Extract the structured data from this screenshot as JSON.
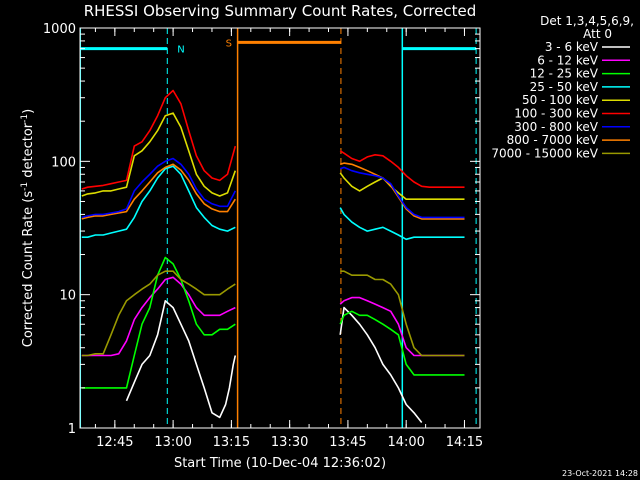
{
  "chart_data": {
    "type": "line",
    "title": "RHESSI Observing Summary Count Rates, Corrected",
    "xlabel": "Start Time (10-Dec-04 12:36:02)",
    "ylabel_main": "Corrected Count Rate (s",
    "ylabel_sup1": "-1",
    "ylabel_mid": " detector",
    "ylabel_sup2": "-1",
    "ylabel_end": ")",
    "yscale": "log",
    "ylim": [
      1,
      1000
    ],
    "xlim_minutes": [
      756.03,
      859.0
    ],
    "x_ticks": [
      {
        "label": "12:45",
        "minutes": 765
      },
      {
        "label": "13:00",
        "minutes": 780
      },
      {
        "label": "13:15",
        "minutes": 795
      },
      {
        "label": "13:30",
        "minutes": 810
      },
      {
        "label": "13:45",
        "minutes": 825
      },
      {
        "label": "14:00",
        "minutes": 840
      },
      {
        "label": "14:15",
        "minutes": 855
      }
    ],
    "y_ticks": [
      {
        "label": "1",
        "value": 1
      },
      {
        "label": "10",
        "value": 10
      },
      {
        "label": "100",
        "value": 100
      },
      {
        "label": "1000",
        "value": 1000
      }
    ],
    "legend_title": [
      "Det 1,3,4,5,6,9,",
      "Att 0"
    ],
    "legend_position": "right",
    "date_stamp": "23-Oct-2021 14:28",
    "series": [
      {
        "name": "3 - 6 keV",
        "color": "#ffffff",
        "x": [
          756.5,
          760,
          764,
          766,
          768,
          770,
          772,
          774,
          776,
          778,
          780,
          782,
          784,
          786,
          788,
          790,
          792,
          793.5,
          794.5,
          795.5,
          796,
          823,
          824,
          826,
          828,
          830,
          832,
          834,
          836,
          838,
          840,
          842,
          844,
          846,
          848,
          850,
          852,
          854,
          855
        ],
        "y": [
          null,
          null,
          null,
          null,
          1.6,
          2.2,
          3,
          3.5,
          5,
          9,
          8,
          6,
          4.5,
          3,
          2,
          1.3,
          1.2,
          1.5,
          2,
          3,
          3.5,
          5,
          8,
          7,
          6,
          5,
          4,
          3,
          2.5,
          2,
          1.5,
          1.3,
          1.1,
          null,
          null,
          null,
          null,
          null,
          null
        ]
      },
      {
        "name": "6 - 12 keV",
        "color": "#ff00ff",
        "x": [
          756.5,
          758,
          760,
          762,
          764,
          766,
          768,
          770,
          772,
          774,
          776,
          778,
          780,
          782,
          784,
          786,
          788,
          790,
          792,
          794,
          796,
          823,
          824,
          826,
          828,
          830,
          832,
          834,
          836,
          838,
          840,
          842,
          844,
          846,
          848,
          850,
          852,
          854,
          855
        ],
        "y": [
          3.5,
          3.5,
          3.5,
          3.5,
          3.5,
          3.6,
          4.5,
          6.5,
          8,
          9.5,
          11,
          13,
          13.5,
          12,
          10,
          8,
          7,
          7,
          7,
          7.5,
          8,
          8.5,
          9,
          9.5,
          9.5,
          9,
          8.5,
          8,
          7.5,
          6,
          4,
          3.5,
          3.5,
          3.5,
          3.5,
          3.5,
          3.5,
          3.5,
          3.5
        ]
      },
      {
        "name": "12 - 25 keV",
        "color": "#00ff00",
        "x": [
          756.5,
          758,
          760,
          762,
          764,
          766,
          768,
          770,
          772,
          774,
          776,
          778,
          780,
          782,
          784,
          786,
          788,
          790,
          792,
          794,
          796,
          823,
          824,
          826,
          828,
          830,
          832,
          834,
          836,
          838,
          840,
          842,
          844,
          846,
          848,
          850,
          852,
          854,
          855
        ],
        "y": [
          2,
          2,
          2,
          2,
          2,
          2,
          2,
          3.5,
          6,
          8,
          14,
          19,
          17,
          13,
          9,
          6,
          5,
          5,
          5.5,
          5.5,
          6,
          6,
          7,
          7.5,
          7,
          7,
          6.5,
          6,
          5.5,
          5,
          3,
          2.5,
          2.5,
          2.5,
          2.5,
          2.5,
          2.5,
          2.5,
          2.5
        ]
      },
      {
        "name": "25 - 50 keV",
        "color": "#00ffff",
        "x": [
          756.5,
          758,
          760,
          762,
          764,
          766,
          768,
          770,
          772,
          774,
          776,
          778,
          780,
          782,
          784,
          786,
          788,
          790,
          792,
          794,
          796,
          823,
          824,
          826,
          828,
          830,
          832,
          834,
          836,
          838,
          840,
          842,
          844,
          846,
          848,
          850,
          852,
          854,
          855
        ],
        "y": [
          27,
          27,
          28,
          28,
          29,
          30,
          31,
          38,
          50,
          60,
          75,
          88,
          92,
          80,
          60,
          45,
          38,
          33,
          31,
          30,
          32,
          45,
          40,
          35,
          32,
          30,
          31,
          32,
          30,
          28,
          26,
          27,
          27,
          27,
          27,
          27,
          27,
          27,
          27
        ]
      },
      {
        "name": "50 - 100 keV",
        "color": "#dddd00",
        "x": [
          756.5,
          758,
          760,
          762,
          764,
          766,
          768,
          770,
          772,
          774,
          776,
          778,
          780,
          782,
          784,
          786,
          788,
          790,
          792,
          794,
          796,
          823,
          824,
          826,
          828,
          830,
          832,
          834,
          836,
          838,
          840,
          842,
          844,
          846,
          848,
          850,
          852,
          854,
          855
        ],
        "y": [
          55,
          57,
          58,
          60,
          60,
          62,
          64,
          110,
          120,
          140,
          170,
          220,
          230,
          180,
          120,
          80,
          65,
          58,
          55,
          58,
          85,
          82,
          75,
          65,
          60,
          65,
          70,
          75,
          65,
          58,
          52,
          52,
          52,
          52,
          52,
          52,
          52,
          52,
          52
        ]
      },
      {
        "name": "100 - 300 keV",
        "color": "#ff0000",
        "x": [
          756.5,
          758,
          760,
          762,
          764,
          766,
          768,
          770,
          772,
          774,
          776,
          778,
          780,
          782,
          784,
          786,
          788,
          790,
          792,
          794,
          796,
          823,
          824,
          826,
          828,
          830,
          832,
          834,
          836,
          838,
          840,
          842,
          844,
          846,
          848,
          850,
          852,
          854,
          855
        ],
        "y": [
          62,
          64,
          65,
          66,
          68,
          70,
          72,
          130,
          140,
          170,
          220,
          300,
          340,
          270,
          170,
          110,
          85,
          75,
          72,
          80,
          130,
          120,
          115,
          105,
          100,
          108,
          112,
          110,
          100,
          90,
          78,
          70,
          65,
          64,
          64,
          64,
          64,
          64,
          64
        ]
      },
      {
        "name": "300 - 800 keV",
        "color": "#0000ff",
        "x": [
          756.5,
          758,
          760,
          762,
          764,
          766,
          768,
          770,
          772,
          774,
          776,
          778,
          780,
          782,
          784,
          786,
          788,
          790,
          792,
          794,
          796,
          823,
          824,
          826,
          828,
          830,
          832,
          834,
          836,
          838,
          840,
          842,
          844,
          846,
          848,
          850,
          852,
          854,
          855
        ],
        "y": [
          38,
          39,
          40,
          40,
          41,
          42,
          44,
          60,
          70,
          80,
          92,
          100,
          105,
          95,
          80,
          62,
          52,
          48,
          46,
          46,
          60,
          88,
          90,
          85,
          82,
          80,
          78,
          75,
          68,
          55,
          45,
          40,
          38,
          38,
          38,
          38,
          38,
          38,
          38
        ]
      },
      {
        "name": "800 - 7000 keV",
        "color": "#ff8000",
        "x": [
          756.5,
          758,
          760,
          762,
          764,
          766,
          768,
          770,
          772,
          774,
          776,
          778,
          780,
          782,
          784,
          786,
          788,
          790,
          792,
          794,
          796,
          823,
          824,
          826,
          828,
          830,
          832,
          834,
          836,
          838,
          840,
          842,
          844,
          846,
          848,
          850,
          852,
          854,
          855
        ],
        "y": [
          37,
          38,
          39,
          39,
          40,
          41,
          42,
          52,
          60,
          70,
          82,
          90,
          95,
          86,
          72,
          57,
          48,
          44,
          42,
          42,
          52,
          95,
          97,
          95,
          90,
          85,
          80,
          75,
          66,
          54,
          44,
          39,
          37,
          37,
          37,
          37,
          37,
          37,
          37
        ]
      },
      {
        "name": "7000 - 15000 keV",
        "color": "#999900",
        "x": [
          756.5,
          758,
          760,
          762,
          764,
          766,
          768,
          770,
          772,
          774,
          776,
          778,
          780,
          782,
          784,
          786,
          788,
          790,
          792,
          794,
          796,
          823,
          824,
          826,
          828,
          830,
          832,
          834,
          836,
          838,
          840,
          842,
          844,
          846,
          848,
          850,
          852,
          854,
          855
        ],
        "y": [
          3.5,
          3.5,
          3.6,
          3.6,
          5,
          7,
          9,
          10,
          11,
          12,
          14,
          15,
          15,
          13,
          12,
          11,
          10,
          10,
          10,
          11,
          12,
          15,
          15,
          14,
          14,
          14,
          13,
          13,
          12,
          10,
          6,
          4,
          3.5,
          3.5,
          3.5,
          3.5,
          3.5,
          3.5,
          3.5
        ]
      }
    ],
    "annotations": {
      "night": {
        "label": "N",
        "color": "#00ffff",
        "bars": [
          {
            "x0": 756.1,
            "x1": 778.5,
            "y": 700
          },
          {
            "x0": 839.0,
            "x1": 858.0,
            "y": 700
          }
        ],
        "boundaries_dashed": [
          778.5,
          858.0
        ],
        "boundaries_solid": [
          756.1,
          839.0
        ]
      },
      "saa": {
        "label": "S",
        "color": "#ff8000",
        "bars": [
          {
            "x0": 796.6,
            "x1": 823.2,
            "y": 780
          }
        ],
        "boundaries_solid": [
          796.6
        ],
        "boundaries_dashed": [
          823.2
        ]
      }
    }
  }
}
